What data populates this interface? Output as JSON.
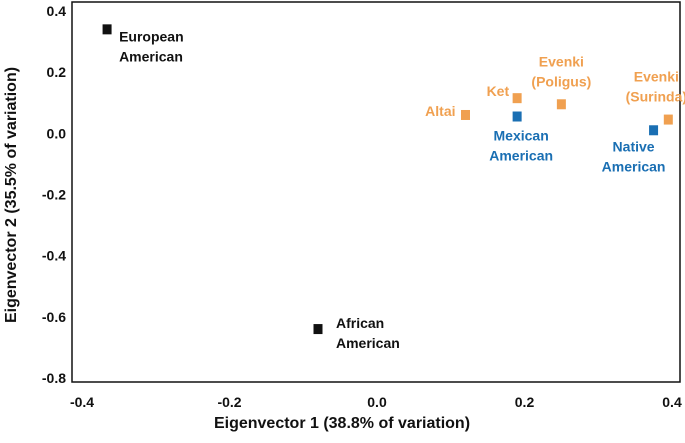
{
  "chart_data": {
    "type": "scatter",
    "xlabel": "Eigenvector 1 (38.8% of variation)",
    "ylabel": "Eigenvector 2 (35.5% of variation)",
    "xlim": [
      -0.4,
      0.4
    ],
    "ylim": [
      -0.8,
      0.4
    ],
    "x_ticks": [
      "-0.4",
      "-0.2",
      "0.0",
      "0.2",
      "0.4"
    ],
    "y_ticks": [
      "0.4",
      "0.2",
      "0.0",
      "-0.2",
      "-0.4",
      "-0.6",
      "-0.8"
    ],
    "grid": false,
    "legend": "none",
    "colors": {
      "black": "#111111",
      "orange": "#F0A050",
      "blue": "#1A6FB3"
    },
    "points": [
      {
        "x": -0.366,
        "y": 0.34,
        "color": "black",
        "label_lines": [
          "European",
          "American"
        ]
      },
      {
        "x": -0.08,
        "y": -0.64,
        "color": "black",
        "label_lines": [
          "African",
          "American"
        ]
      },
      {
        "x": 0.12,
        "y": 0.06,
        "color": "orange",
        "label_lines": [
          "Altai"
        ]
      },
      {
        "x": 0.19,
        "y": 0.115,
        "color": "orange",
        "label_lines": [
          "Ket"
        ]
      },
      {
        "x": 0.25,
        "y": 0.095,
        "color": "orange",
        "label_lines": [
          "Evenki",
          "(Poligus)"
        ]
      },
      {
        "x": 0.395,
        "y": 0.045,
        "color": "orange",
        "label_lines": [
          "Evenki",
          "(Surinda)"
        ]
      },
      {
        "x": 0.19,
        "y": 0.055,
        "color": "blue",
        "label_lines": [
          "Mexican",
          "American"
        ]
      },
      {
        "x": 0.375,
        "y": 0.01,
        "color": "blue",
        "label_lines": [
          "Native",
          "American"
        ]
      }
    ]
  }
}
